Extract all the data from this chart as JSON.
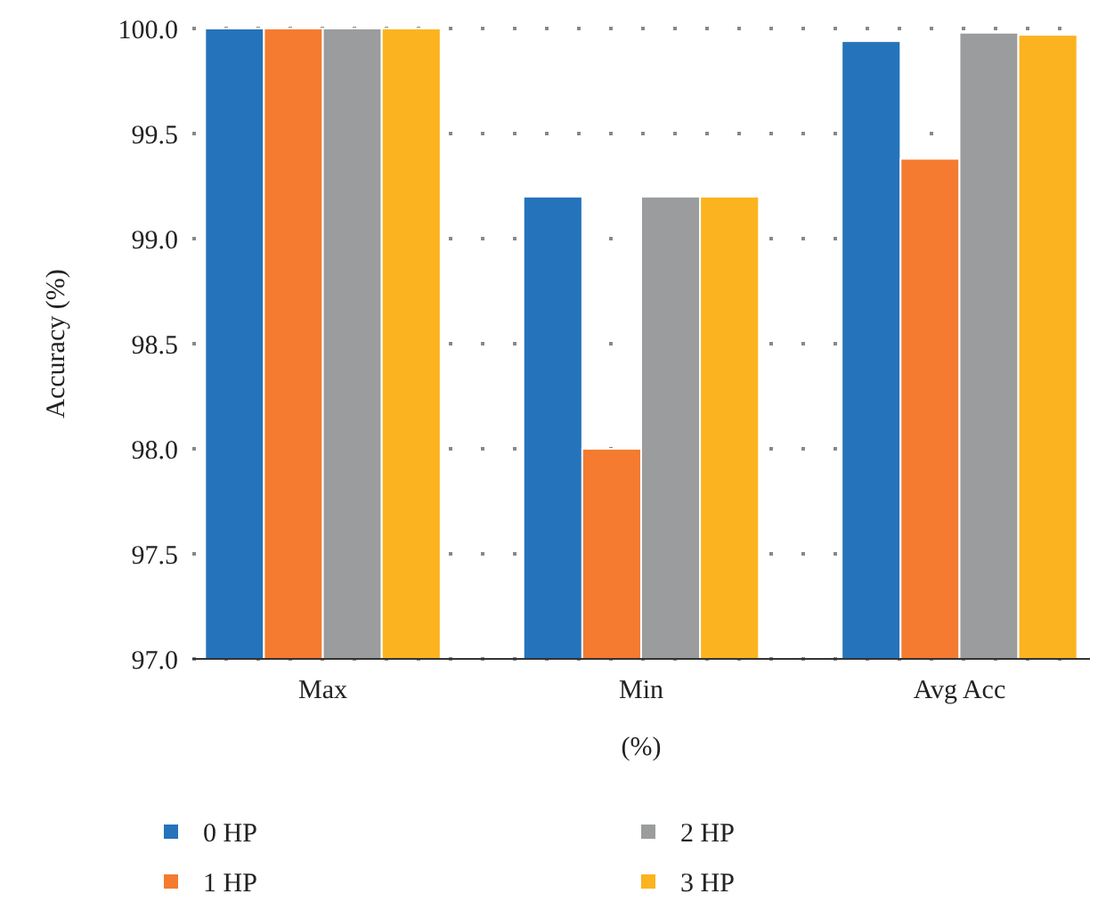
{
  "chart_data": {
    "type": "bar",
    "xlabel": "(%)",
    "ylabel": "Accuracy (%)",
    "categories": [
      "Max",
      "Min",
      "Avg Acc"
    ],
    "series": [
      {
        "name": "0 HP",
        "color": "#2473bb",
        "values": [
          100.0,
          99.2,
          99.94
        ]
      },
      {
        "name": "1 HP",
        "color": "#f47b30",
        "values": [
          100.0,
          98.0,
          99.38
        ]
      },
      {
        "name": "2 HP",
        "color": "#9a9c9d",
        "values": [
          100.0,
          99.2,
          99.98
        ]
      },
      {
        "name": "3 HP",
        "color": "#fbb31f",
        "values": [
          100.0,
          99.2,
          99.97
        ]
      }
    ],
    "ylim": [
      97.0,
      100.0
    ],
    "yticks": [
      {
        "value": 97,
        "label": "97.0"
      },
      {
        "value": 97.5,
        "label": "97.5"
      },
      {
        "value": 98,
        "label": "98.0"
      },
      {
        "value": 98.5,
        "label": "98.5"
      },
      {
        "value": 99,
        "label": "99.0"
      },
      {
        "value": 99.5,
        "label": "99.5"
      },
      {
        "value": 100,
        "label": "100.0"
      }
    ],
    "grid": "y",
    "legend": "bottom",
    "marker": "square"
  }
}
